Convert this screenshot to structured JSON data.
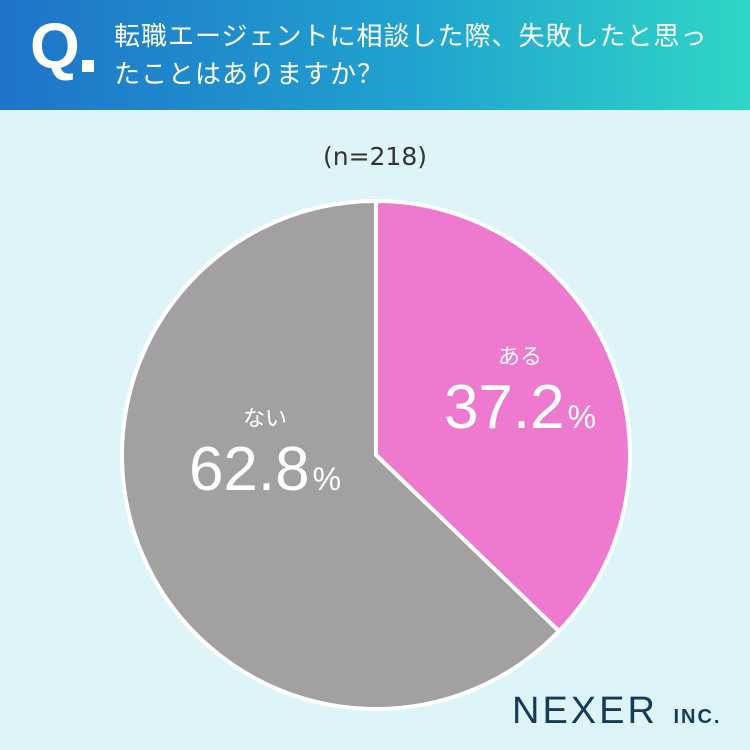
{
  "header": {
    "q_label": "Q",
    "question": "転職エージェントに相談した際、失敗したと思ったことはありますか？"
  },
  "sample_size": "(n=218)",
  "colors": {
    "header_start": "#1f73c9",
    "header_end": "#2fd6c6",
    "background": "#def4f8",
    "aru": "#ee7acf",
    "nai": "#a2a0a1"
  },
  "chart_data": {
    "type": "pie",
    "title": "",
    "slices": [
      {
        "label": "ある",
        "value": 37.2,
        "display": "37.2",
        "unit": "%",
        "color": "#ee7acf"
      },
      {
        "label": "ない",
        "value": 62.8,
        "display": "62.8",
        "unit": "%",
        "color": "#a2a0a1"
      }
    ]
  },
  "logo": {
    "name": "NEXER",
    "suffix": "INC."
  }
}
